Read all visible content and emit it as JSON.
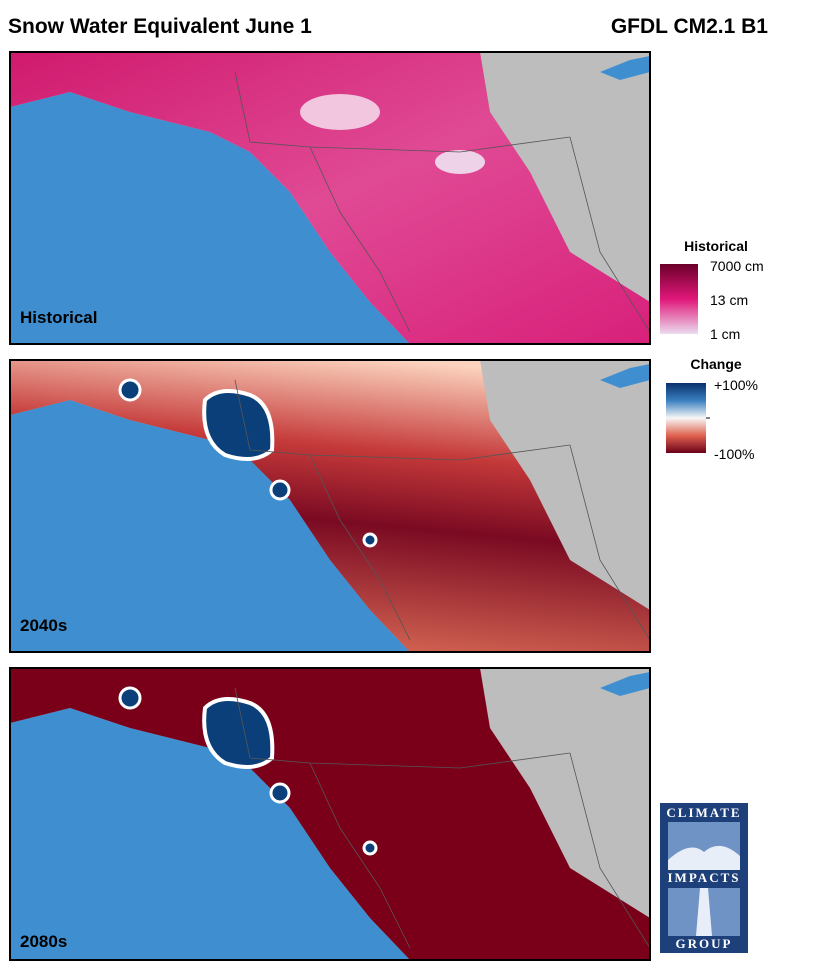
{
  "header": {
    "title": "Snow Water Equivalent June 1",
    "model": "GFDL CM2.1 B1"
  },
  "panels": [
    {
      "label": "Historical"
    },
    {
      "label": "2040s"
    },
    {
      "label": "2080s"
    }
  ],
  "legends": [
    {
      "title": "Historical",
      "labels": [
        "7000 cm",
        "13 cm",
        "1 cm"
      ]
    },
    {
      "title": "Change",
      "labels": [
        "+100%",
        "-100%"
      ]
    }
  ],
  "logo": {
    "lines": [
      "CLIMATE",
      "IMPACTS",
      "GROUP"
    ]
  }
}
